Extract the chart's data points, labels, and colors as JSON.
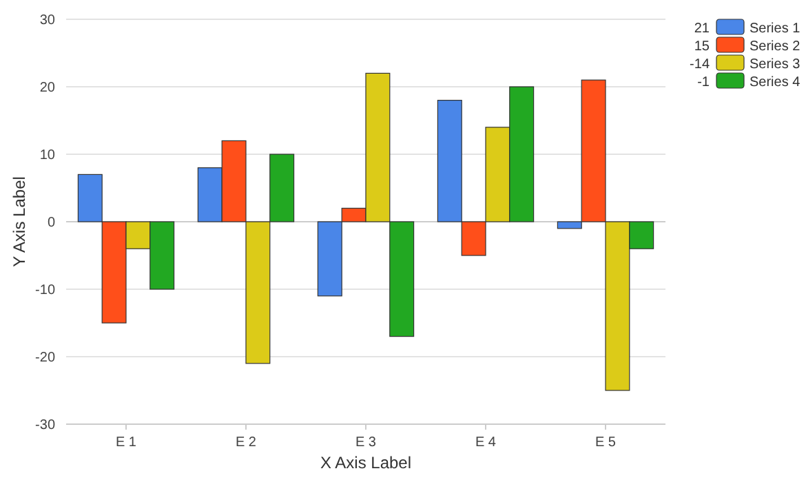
{
  "chart_data": {
    "type": "bar",
    "xlabel": "X Axis Label",
    "ylabel": "Y Axis Label",
    "categories": [
      "E 1",
      "E 2",
      "E 3",
      "E 4",
      "E 5"
    ],
    "series": [
      {
        "name": "Series 1",
        "color": "#4a86e8",
        "values": [
          7,
          8,
          -11,
          18,
          -1
        ]
      },
      {
        "name": "Series 2",
        "color": "#ff4f1a",
        "values": [
          -15,
          12,
          2,
          -5,
          21
        ]
      },
      {
        "name": "Series 3",
        "color": "#dccb18",
        "values": [
          -4,
          -21,
          22,
          14,
          -25
        ]
      },
      {
        "name": "Series 4",
        "color": "#22a822",
        "values": [
          -10,
          10,
          -17,
          20,
          -4
        ]
      }
    ],
    "annotations": [
      "21",
      "15",
      "-14",
      "-1"
    ],
    "ylim": [
      -30,
      30
    ],
    "yticks": [
      -30,
      -20,
      -10,
      0,
      10,
      20,
      30
    ],
    "grid": "y",
    "legend": "top right"
  }
}
